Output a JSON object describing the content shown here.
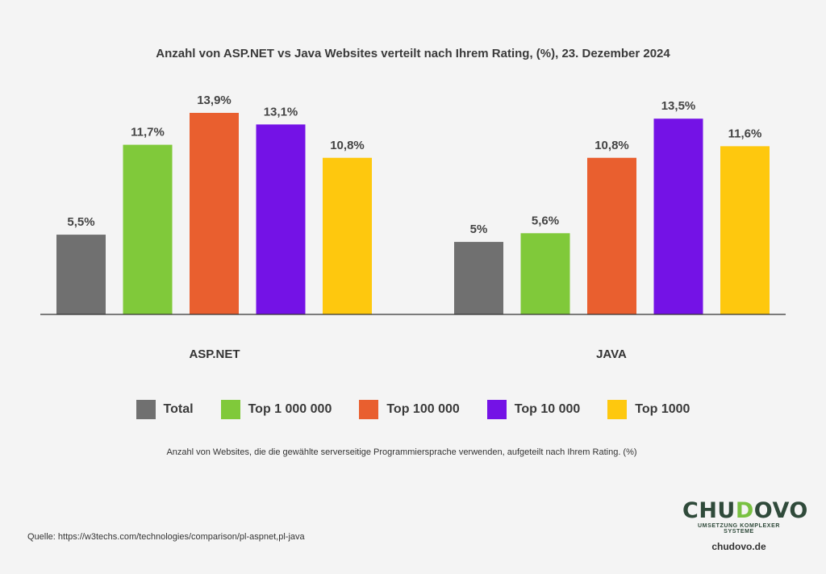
{
  "title": "Anzahl von ASP.NET vs Java Websites verteilt nach Ihrem Rating, (%), 23. Dezember 2024",
  "footnote": "Anzahl von Websites, die die gewählte serverseitige Programmiersprache verwenden, aufgeteilt nach Ihrem Rating. (%)",
  "source": "Quelle: https://w3techs.com/technologies/comparison/pl-aspnet,pl-java",
  "logo": {
    "part1": "CHU",
    "part2": "D",
    "part3": "OVO",
    "tagline": "UMSETZUNG KOMPLEXER SYSTEME",
    "url": "chudovo.de"
  },
  "chart_data": {
    "type": "bar",
    "title": "Anzahl von ASP.NET vs Java Websites verteilt nach Ihrem Rating, (%), 23. Dezember 2024",
    "categories": [
      "ASP.NET",
      "JAVA"
    ],
    "ylim": [
      0,
      15
    ],
    "legend_position": "bottom",
    "series": [
      {
        "name": "Total",
        "color": "#707070",
        "values": [
          5.5,
          5.0
        ],
        "labels": [
          "5,5%",
          "5%"
        ]
      },
      {
        "name": "Top 1 000 000",
        "color": "#80c93a",
        "values": [
          11.7,
          5.6
        ],
        "labels": [
          "11,7%",
          "5,6%"
        ]
      },
      {
        "name": "Top 100 000",
        "color": "#e95f2f",
        "values": [
          13.9,
          10.8
        ],
        "labels": [
          "13,9%",
          "10,8%"
        ]
      },
      {
        "name": "Top 10 000",
        "color": "#7412e6",
        "values": [
          13.1,
          13.5
        ],
        "labels": [
          "13,1%",
          "13,5%"
        ]
      },
      {
        "name": "Top 1000",
        "color": "#fec80e",
        "values": [
          10.8,
          11.6
        ],
        "labels": [
          "10,8%",
          "11,6%"
        ]
      }
    ]
  }
}
